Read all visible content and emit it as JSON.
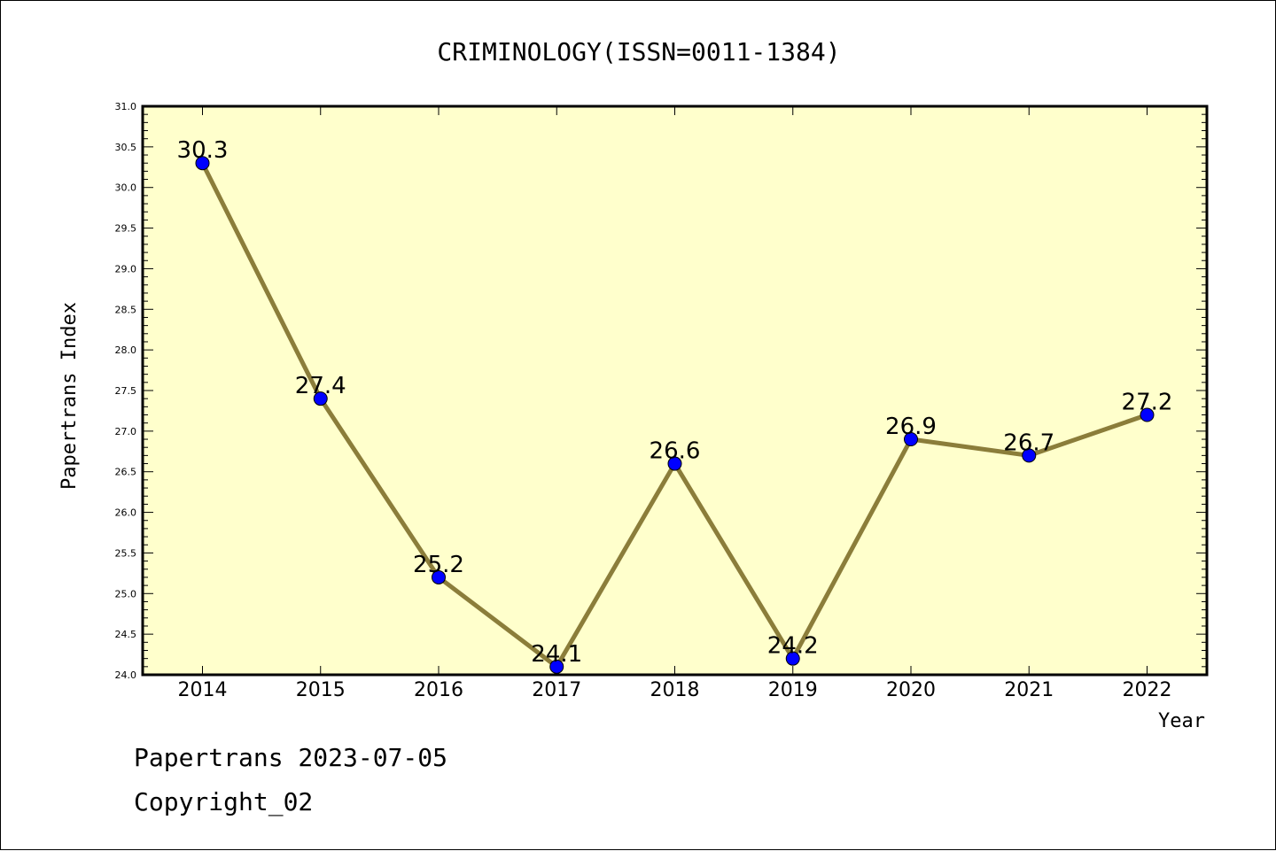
{
  "chart_data": {
    "type": "line",
    "title": "CRIMINOLOGY(ISSN=0011-1384)",
    "xlabel": "Year",
    "ylabel": "Papertrans Index",
    "categories": [
      "2014",
      "2015",
      "2016",
      "2017",
      "2018",
      "2019",
      "2020",
      "2021",
      "2022"
    ],
    "values": [
      30.3,
      27.4,
      25.2,
      24.1,
      26.6,
      24.2,
      26.9,
      26.7,
      27.2
    ],
    "data_labels": [
      "30.3",
      "27.4",
      "25.2",
      "24.1",
      "26.6",
      "24.2",
      "26.9",
      "26.7",
      "27.2"
    ],
    "ylim": [
      24.0,
      31.0
    ],
    "yticks": [
      "24.0",
      "24.5",
      "25.0",
      "25.5",
      "26.0",
      "26.5",
      "27.0",
      "27.5",
      "28.0",
      "28.5",
      "29.0",
      "29.5",
      "30.0",
      "30.5",
      "31.0"
    ],
    "grid": false,
    "colors": {
      "plot_background": "#ffffcc",
      "line": "#8b7d3a",
      "marker": "#0000ff"
    }
  },
  "footer": {
    "line1": "Papertrans 2023-07-05",
    "line2": "Copyright_02"
  }
}
